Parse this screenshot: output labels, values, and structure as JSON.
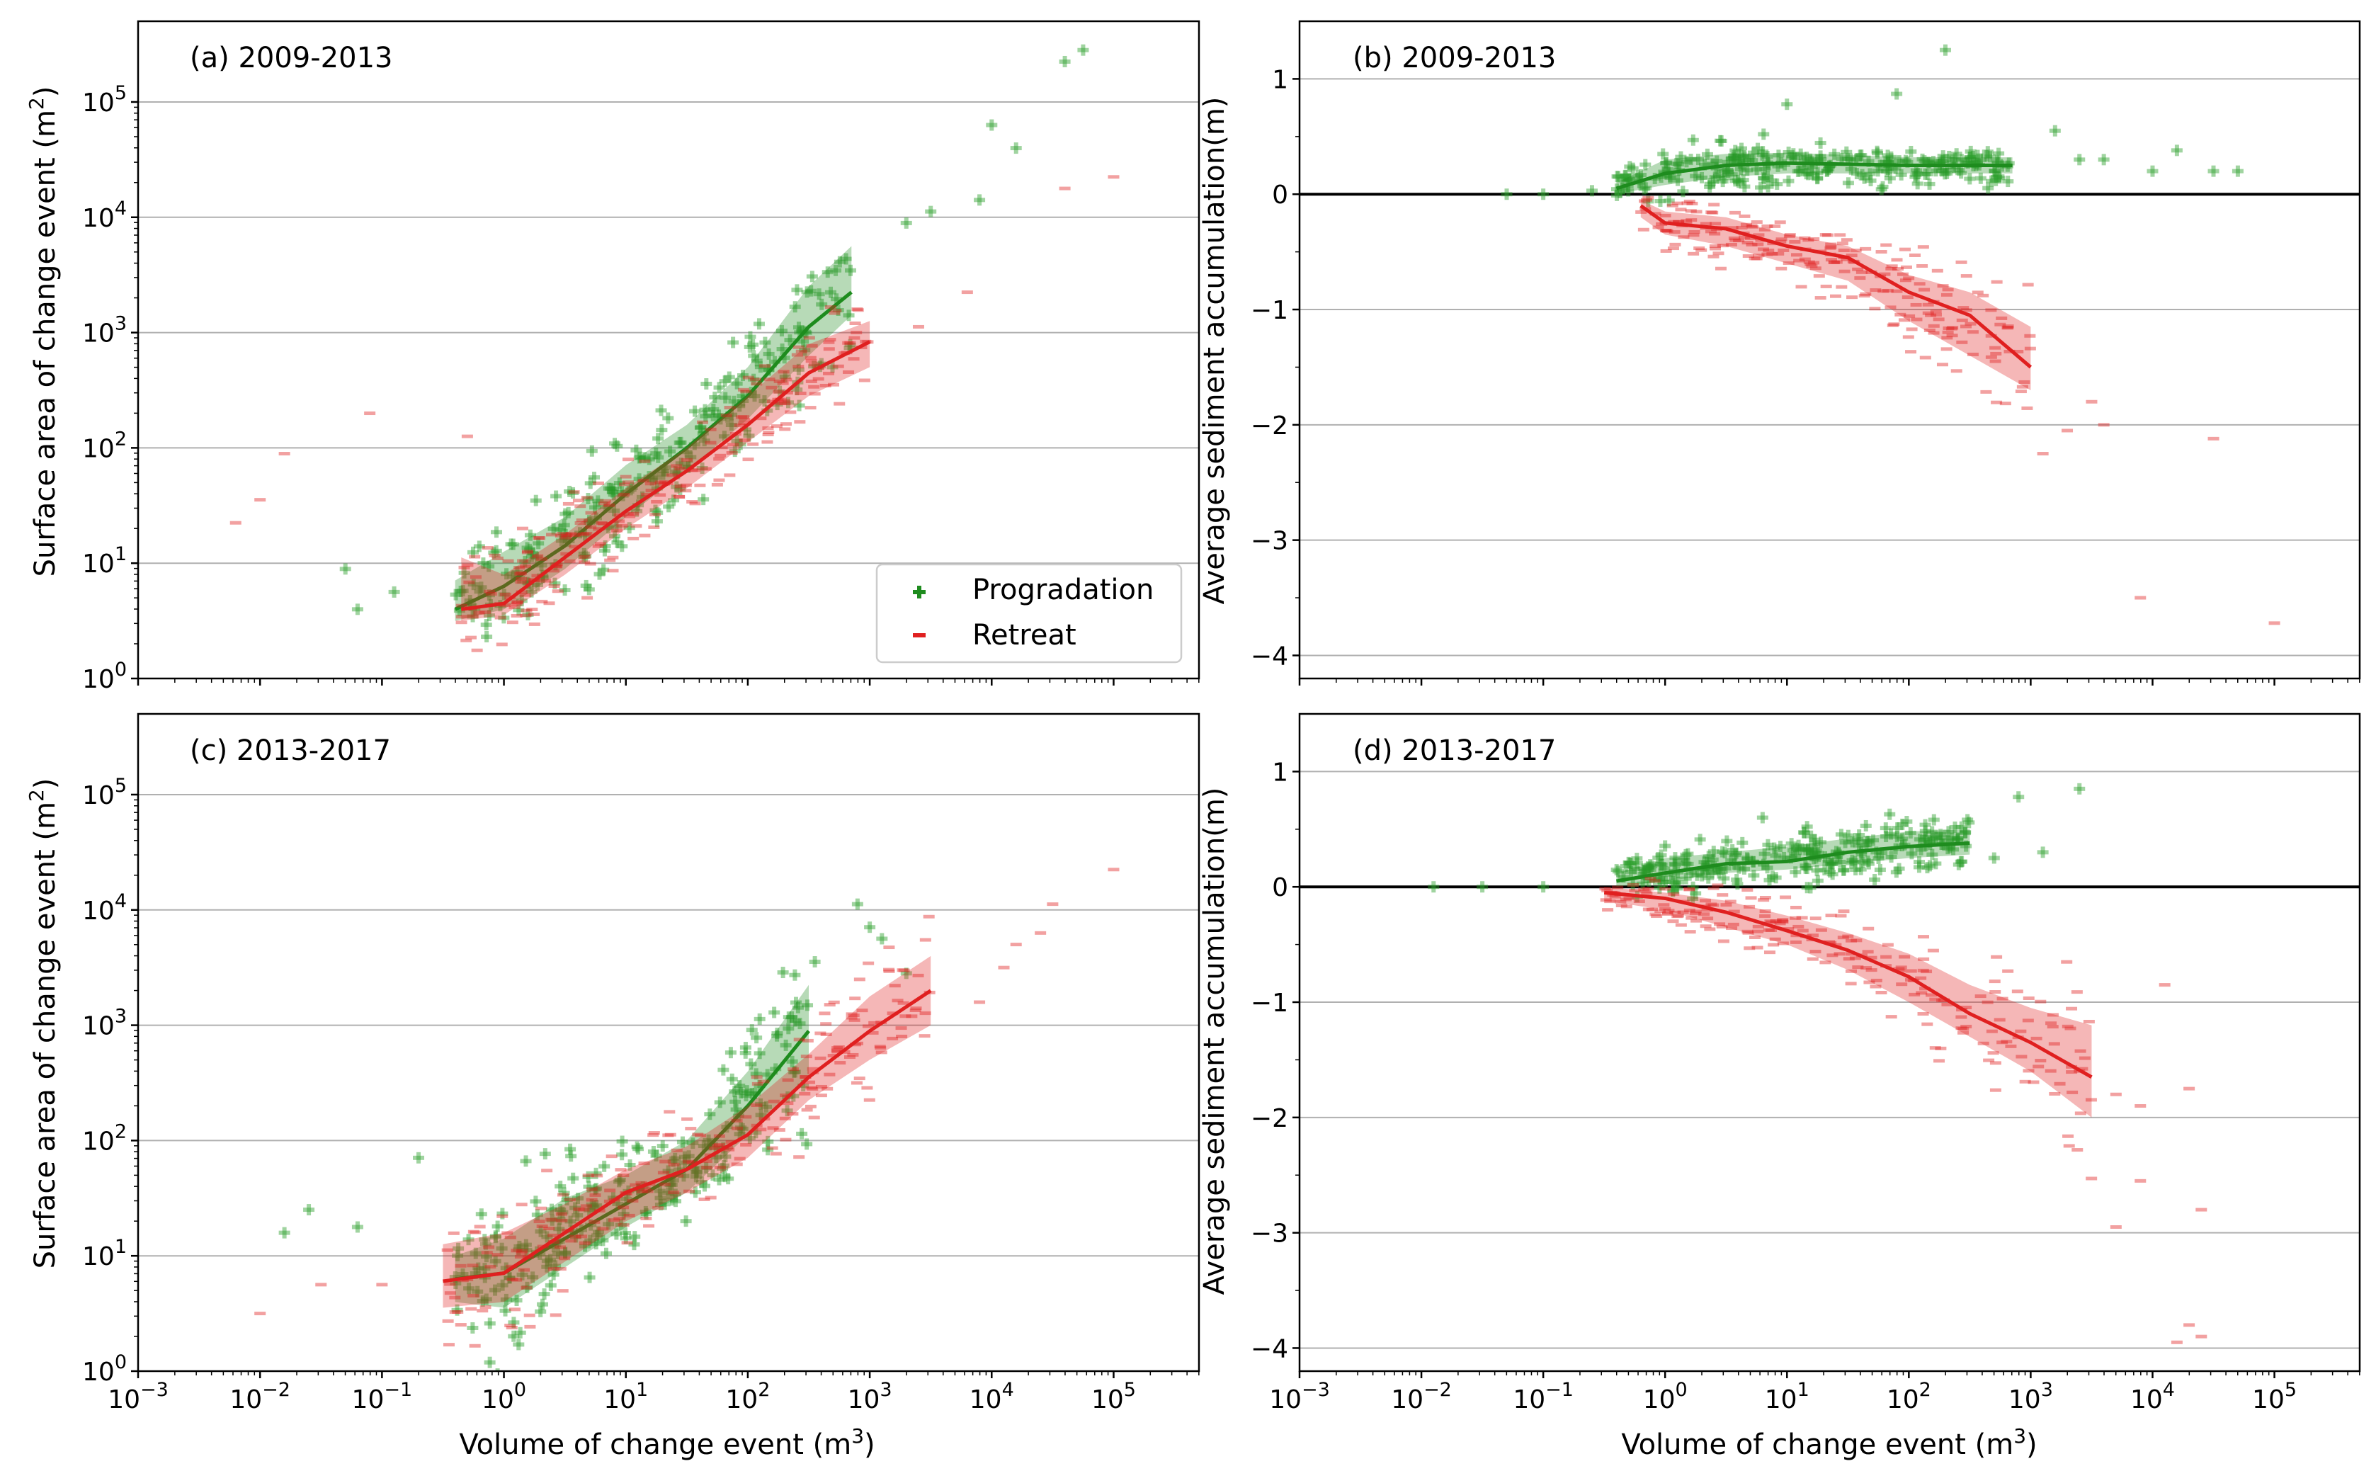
{
  "figure": {
    "background": "#ffffff"
  },
  "colors": {
    "progradation": "#1e8c1e",
    "retreat": "#e02020",
    "grid": "#b0b0b0"
  },
  "legend": {
    "progradation": "Progradation",
    "retreat": "Retreat",
    "location": "lower-right of panel (a)"
  },
  "x_axis": {
    "label_prefix": "Volume of change event (m",
    "label_sup": "3",
    "label_suffix": ")",
    "ticks": [
      {
        "base": "10",
        "exp": "−3"
      },
      {
        "base": "10",
        "exp": "−2"
      },
      {
        "base": "10",
        "exp": "−1"
      },
      {
        "base": "10",
        "exp": "0"
      },
      {
        "base": "10",
        "exp": "1"
      },
      {
        "base": "10",
        "exp": "2"
      },
      {
        "base": "10",
        "exp": "3"
      },
      {
        "base": "10",
        "exp": "4"
      },
      {
        "base": "10",
        "exp": "5"
      }
    ]
  },
  "left_axis": {
    "label_prefix": "Surface area of change event (m",
    "label_sup": "2",
    "label_suffix": ")",
    "ticks": [
      {
        "base": "10",
        "exp": "0"
      },
      {
        "base": "10",
        "exp": "1"
      },
      {
        "base": "10",
        "exp": "2"
      },
      {
        "base": "10",
        "exp": "3"
      },
      {
        "base": "10",
        "exp": "4"
      },
      {
        "base": "10",
        "exp": "5"
      }
    ]
  },
  "right_axis": {
    "label": "Average sediment accumulation(m)",
    "ticks": [
      "1",
      "0",
      "−1",
      "−2",
      "−3",
      "−4"
    ]
  },
  "chart_data": [
    {
      "id": "a",
      "type": "scatter",
      "title": "(a) 2009-2013",
      "xscale": "log",
      "yscale": "log",
      "xlim": [
        -3,
        5.7
      ],
      "ylim": [
        0,
        5.7
      ],
      "xlabel": "Volume of change event (m³)",
      "ylabel": "Surface area of change event (m²)",
      "series": [
        {
          "name": "Progradation",
          "marker": "+",
          "mean": [
            [
              -0.4,
              0.6
            ],
            [
              0,
              0.8
            ],
            [
              0.5,
              1.15
            ],
            [
              1,
              1.6
            ],
            [
              1.5,
              2.0
            ],
            [
              2,
              2.45
            ],
            [
              2.5,
              3.05
            ],
            [
              2.85,
              3.35
            ]
          ],
          "band": [
            [
              -0.4,
              0.5,
              0.85
            ],
            [
              0,
              0.6,
              1.1
            ],
            [
              0.5,
              0.95,
              1.4
            ],
            [
              1,
              1.4,
              1.85
            ],
            [
              1.5,
              1.8,
              2.2
            ],
            [
              2,
              2.25,
              2.7
            ],
            [
              2.5,
              2.8,
              3.4
            ],
            [
              2.85,
              3.15,
              3.75
            ]
          ],
          "outliers": [
            [
              -1.3,
              0.95
            ],
            [
              -1.2,
              0.6
            ],
            [
              -0.9,
              0.75
            ],
            [
              3.3,
              3.95
            ],
            [
              3.5,
              4.05
            ],
            [
              3.9,
              4.15
            ],
            [
              4.0,
              4.8
            ],
            [
              4.2,
              4.6
            ],
            [
              4.6,
              5.35
            ],
            [
              4.75,
              5.45
            ]
          ]
        },
        {
          "name": "Retreat",
          "marker": "_",
          "mean": [
            [
              -0.35,
              0.6
            ],
            [
              0,
              0.65
            ],
            [
              0.5,
              1.05
            ],
            [
              1,
              1.45
            ],
            [
              1.5,
              1.8
            ],
            [
              2,
              2.2
            ],
            [
              2.5,
              2.65
            ],
            [
              3.0,
              2.92
            ]
          ],
          "band": [
            [
              -0.35,
              0.5,
              1.05
            ],
            [
              0,
              0.55,
              0.9
            ],
            [
              0.5,
              0.9,
              1.25
            ],
            [
              1,
              1.3,
              1.65
            ],
            [
              1.5,
              1.65,
              2.0
            ],
            [
              2,
              2.05,
              2.45
            ],
            [
              2.5,
              2.45,
              2.9
            ],
            [
              3.0,
              2.7,
              3.1
            ]
          ],
          "outliers": [
            [
              -2.2,
              1.35
            ],
            [
              -2.0,
              1.55
            ],
            [
              -1.8,
              1.95
            ],
            [
              -1.1,
              2.3
            ],
            [
              -0.3,
              2.1
            ],
            [
              3.4,
              3.05
            ],
            [
              3.8,
              3.35
            ],
            [
              4.6,
              4.25
            ],
            [
              5.0,
              4.35
            ]
          ]
        }
      ]
    },
    {
      "id": "b",
      "type": "scatter",
      "title": "(b) 2009-2013",
      "xscale": "log",
      "yscale": "linear",
      "xlim": [
        -3,
        5.7
      ],
      "ylim": [
        -4.2,
        1.5
      ],
      "xlabel": "Volume of change event (m³)",
      "ylabel": "Average sediment accumulation(m)",
      "series": [
        {
          "name": "Progradation",
          "marker": "+",
          "mean": [
            [
              -0.4,
              0.05
            ],
            [
              0,
              0.18
            ],
            [
              0.5,
              0.25
            ],
            [
              1,
              0.27
            ],
            [
              1.5,
              0.26
            ],
            [
              2,
              0.25
            ],
            [
              2.5,
              0.25
            ],
            [
              2.85,
              0.25
            ]
          ],
          "band": [
            [
              -0.4,
              0.0,
              0.1
            ],
            [
              0,
              0.08,
              0.3
            ],
            [
              0.5,
              0.15,
              0.35
            ],
            [
              1,
              0.18,
              0.36
            ],
            [
              1.5,
              0.18,
              0.34
            ],
            [
              2,
              0.18,
              0.32
            ],
            [
              2.5,
              0.18,
              0.32
            ],
            [
              2.85,
              0.18,
              0.32
            ]
          ],
          "outliers": [
            [
              -1.3,
              0.0
            ],
            [
              -1.0,
              0.0
            ],
            [
              -0.6,
              0.03
            ],
            [
              2.3,
              1.25
            ],
            [
              1.9,
              0.87
            ],
            [
              1.0,
              0.78
            ],
            [
              3.2,
              0.55
            ],
            [
              3.4,
              0.3
            ],
            [
              3.6,
              0.3
            ],
            [
              4.0,
              0.2
            ],
            [
              4.2,
              0.38
            ],
            [
              4.5,
              0.2
            ],
            [
              4.7,
              0.2
            ]
          ]
        },
        {
          "name": "Retreat",
          "marker": "_",
          "mean": [
            [
              -0.2,
              -0.1
            ],
            [
              0,
              -0.25
            ],
            [
              0.5,
              -0.3
            ],
            [
              1,
              -0.45
            ],
            [
              1.5,
              -0.55
            ],
            [
              2,
              -0.85
            ],
            [
              2.5,
              -1.05
            ],
            [
              3.0,
              -1.5
            ]
          ],
          "band": [
            [
              -0.2,
              -0.2,
              -0.05
            ],
            [
              0,
              -0.35,
              -0.15
            ],
            [
              0.5,
              -0.45,
              -0.2
            ],
            [
              1,
              -0.6,
              -0.35
            ],
            [
              1.5,
              -0.75,
              -0.45
            ],
            [
              2,
              -1.1,
              -0.7
            ],
            [
              2.5,
              -1.4,
              -0.85
            ],
            [
              3.0,
              -1.7,
              -1.15
            ]
          ],
          "outliers": [
            [
              3.5,
              -1.8
            ],
            [
              3.6,
              -2.0
            ],
            [
              3.1,
              -2.25
            ],
            [
              3.3,
              -2.05
            ],
            [
              4.5,
              -2.12
            ],
            [
              3.9,
              -3.5
            ],
            [
              5.0,
              -3.72
            ]
          ]
        }
      ]
    },
    {
      "id": "c",
      "type": "scatter",
      "title": "(c) 2013-2017",
      "xscale": "log",
      "yscale": "log",
      "xlim": [
        -3,
        5.7
      ],
      "ylim": [
        0,
        5.7
      ],
      "xlabel": "Volume of change event (m³)",
      "ylabel": "Surface area of change event (m²)",
      "series": [
        {
          "name": "Progradation",
          "marker": "+",
          "mean": [
            [
              -0.4,
              0.8
            ],
            [
              0,
              0.85
            ],
            [
              0.5,
              1.15
            ],
            [
              1,
              1.45
            ],
            [
              1.5,
              1.75
            ],
            [
              2,
              2.3
            ],
            [
              2.5,
              2.95
            ]
          ],
          "band": [
            [
              -0.4,
              0.6,
              1.0
            ],
            [
              0,
              0.55,
              1.15
            ],
            [
              0.5,
              0.9,
              1.5
            ],
            [
              1,
              1.25,
              1.7
            ],
            [
              1.5,
              1.55,
              2.0
            ],
            [
              2,
              2.05,
              2.6
            ],
            [
              2.5,
              2.55,
              3.35
            ]
          ],
          "outliers": [
            [
              -1.8,
              1.2
            ],
            [
              -1.6,
              1.4
            ],
            [
              -1.2,
              1.25
            ],
            [
              -0.7,
              1.85
            ],
            [
              2.9,
              4.05
            ],
            [
              3.0,
              3.85
            ],
            [
              3.1,
              3.75
            ],
            [
              3.3,
              3.45
            ],
            [
              2.55,
              3.55
            ]
          ]
        },
        {
          "name": "Retreat",
          "marker": "_",
          "mean": [
            [
              -0.5,
              0.78
            ],
            [
              0,
              0.85
            ],
            [
              0.5,
              1.2
            ],
            [
              1,
              1.55
            ],
            [
              1.5,
              1.75
            ],
            [
              2,
              2.05
            ],
            [
              2.5,
              2.55
            ],
            [
              3.0,
              2.95
            ],
            [
              3.5,
              3.3
            ]
          ],
          "band": [
            [
              -0.5,
              0.55,
              1.1
            ],
            [
              0,
              0.6,
              1.2
            ],
            [
              0.5,
              0.95,
              1.45
            ],
            [
              1,
              1.3,
              1.75
            ],
            [
              1.5,
              1.55,
              1.95
            ],
            [
              2,
              1.85,
              2.3
            ],
            [
              2.5,
              2.35,
              2.75
            ],
            [
              3.0,
              2.7,
              3.25
            ],
            [
              3.5,
              3.0,
              3.6
            ]
          ],
          "outliers": [
            [
              -2.0,
              0.5
            ],
            [
              -1.5,
              0.75
            ],
            [
              -1.0,
              0.75
            ],
            [
              3.9,
              3.2
            ],
            [
              4.1,
              3.5
            ],
            [
              4.4,
              3.8
            ],
            [
              4.5,
              4.05
            ],
            [
              5.0,
              4.35
            ],
            [
              4.2,
              3.7
            ]
          ]
        }
      ]
    },
    {
      "id": "d",
      "type": "scatter",
      "title": "(d) 2013-2017",
      "xscale": "log",
      "yscale": "linear",
      "xlim": [
        -3,
        5.7
      ],
      "ylim": [
        -4.2,
        1.5
      ],
      "xlabel": "Volume of change event (m³)",
      "ylabel": "Average sediment accumulation(m)",
      "series": [
        {
          "name": "Progradation",
          "marker": "+",
          "mean": [
            [
              -0.4,
              0.05
            ],
            [
              0,
              0.12
            ],
            [
              0.5,
              0.2
            ],
            [
              1,
              0.22
            ],
            [
              1.5,
              0.3
            ],
            [
              2,
              0.35
            ],
            [
              2.5,
              0.38
            ]
          ],
          "band": [
            [
              -0.4,
              0.0,
              0.12
            ],
            [
              0,
              0.05,
              0.25
            ],
            [
              0.5,
              0.12,
              0.3
            ],
            [
              1,
              0.15,
              0.35
            ],
            [
              1.5,
              0.2,
              0.42
            ],
            [
              2,
              0.25,
              0.48
            ],
            [
              2.5,
              0.28,
              0.5
            ]
          ],
          "outliers": [
            [
              -1.9,
              0.0
            ],
            [
              -1.5,
              0.0
            ],
            [
              -1.0,
              0.0
            ],
            [
              0.8,
              0.6
            ],
            [
              2.9,
              0.78
            ],
            [
              3.1,
              0.3
            ],
            [
              3.4,
              0.85
            ],
            [
              2.7,
              0.25
            ]
          ]
        },
        {
          "name": "Retreat",
          "marker": "_",
          "mean": [
            [
              -0.5,
              -0.05
            ],
            [
              0,
              -0.1
            ],
            [
              0.5,
              -0.22
            ],
            [
              1,
              -0.38
            ],
            [
              1.5,
              -0.55
            ],
            [
              2,
              -0.78
            ],
            [
              2.5,
              -1.1
            ],
            [
              3.0,
              -1.35
            ],
            [
              3.5,
              -1.65
            ]
          ],
          "band": [
            [
              -0.5,
              -0.12,
              0.0
            ],
            [
              0,
              -0.2,
              -0.05
            ],
            [
              0.5,
              -0.35,
              -0.12
            ],
            [
              1,
              -0.5,
              -0.25
            ],
            [
              1.5,
              -0.72,
              -0.4
            ],
            [
              2,
              -1.0,
              -0.58
            ],
            [
              2.5,
              -1.3,
              -0.85
            ],
            [
              3.0,
              -1.6,
              -1.05
            ],
            [
              3.5,
              -2.0,
              -1.2
            ]
          ],
          "outliers": [
            [
              3.7,
              -1.8
            ],
            [
              3.9,
              -1.9
            ],
            [
              4.1,
              -0.85
            ],
            [
              4.3,
              -1.75
            ],
            [
              3.9,
              -2.55
            ],
            [
              3.7,
              -2.95
            ],
            [
              4.4,
              -2.8
            ],
            [
              4.3,
              -3.8
            ],
            [
              4.4,
              -3.9
            ],
            [
              4.2,
              -3.95
            ]
          ]
        }
      ]
    }
  ]
}
